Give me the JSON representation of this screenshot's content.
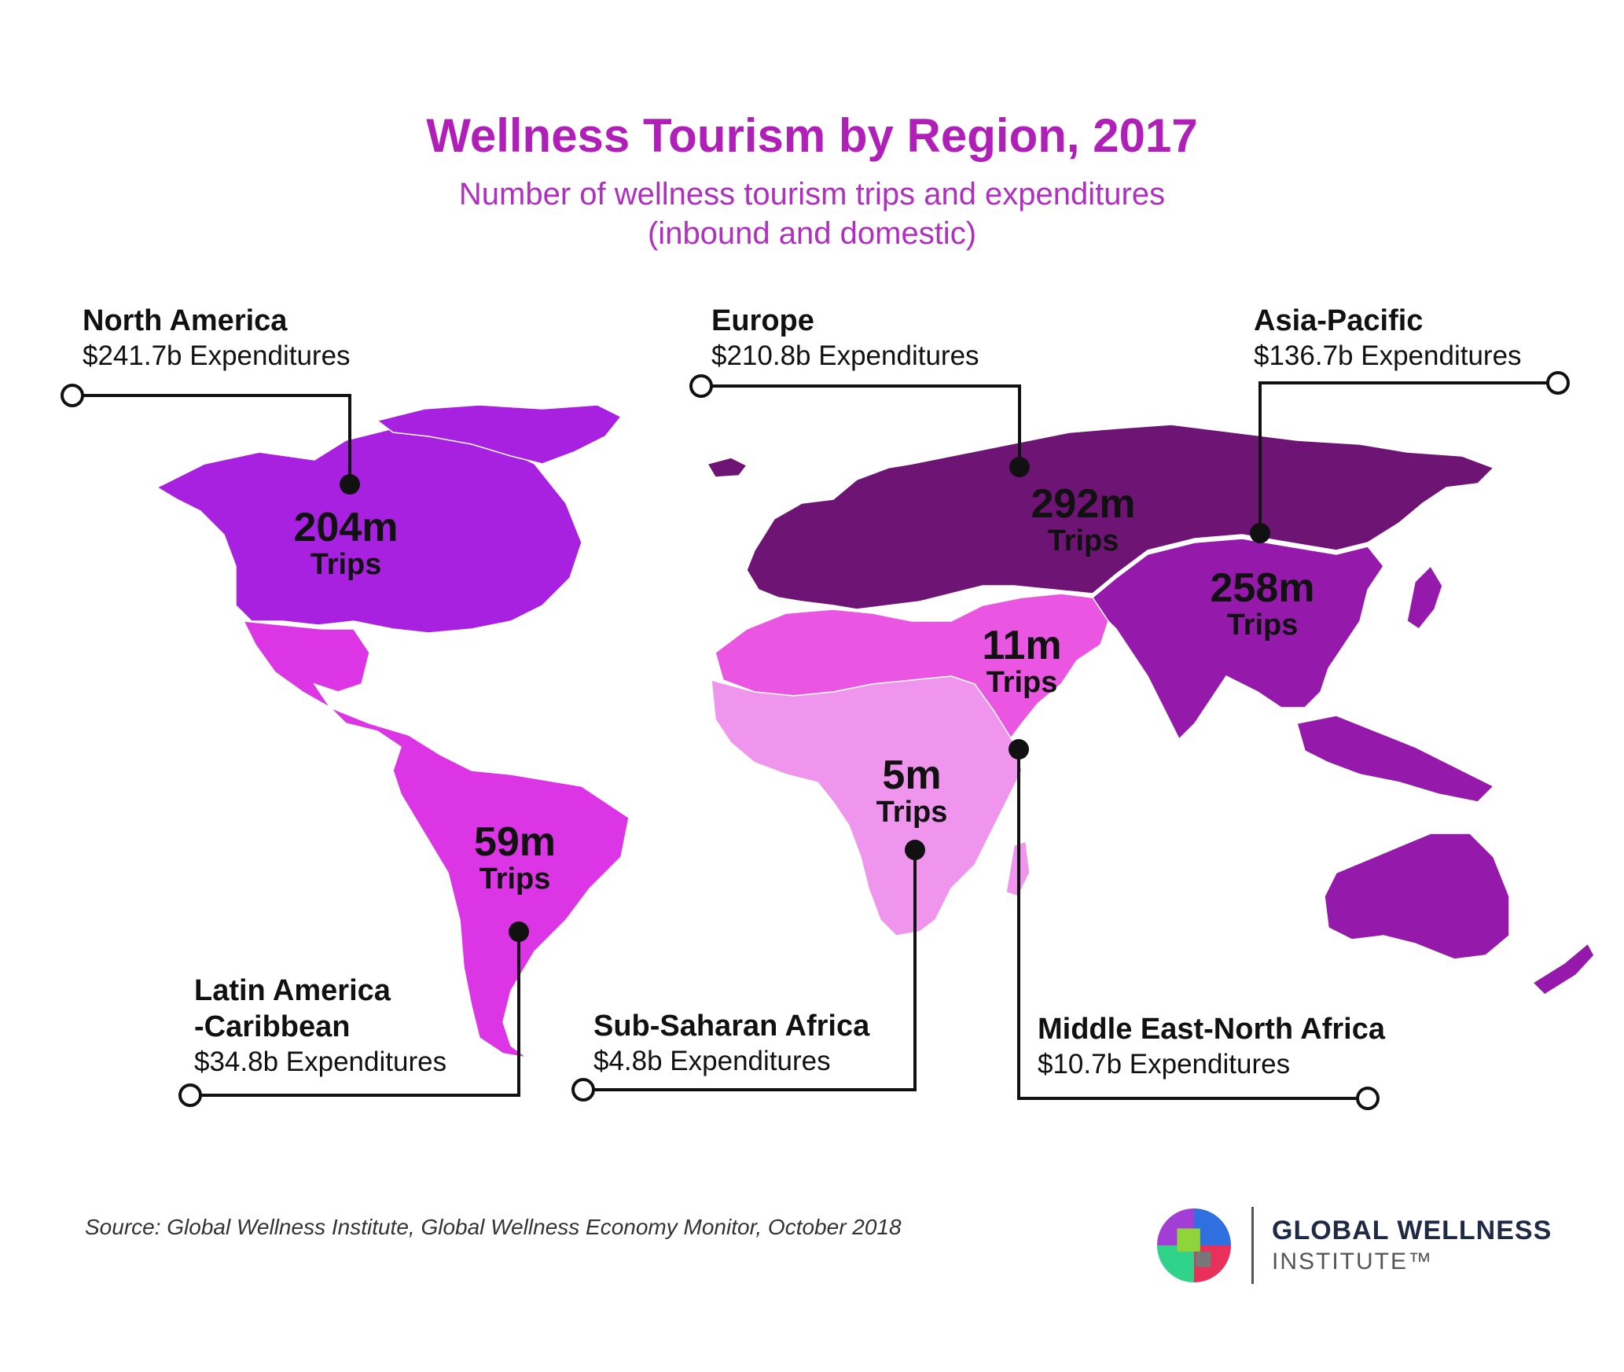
{
  "header": {
    "title": "Wellness Tourism by Region, 2017",
    "subtitle_line1": "Number of wellness tourism trips and expenditures",
    "subtitle_line2": "(inbound and domestic)"
  },
  "colors": {
    "title": "#b01fb8",
    "subtitle": "#b02fc0",
    "north_america": "#a921e0",
    "latin_america": "#dc35e5",
    "europe": "#6e1475",
    "asia_pacific": "#951aab",
    "mena": "#ea55e2",
    "sub_saharan_africa": "#ef95ee",
    "leader_line": "#111111"
  },
  "regions": {
    "north_america": {
      "name": "North America",
      "expenditures": "$241.7b Expenditures",
      "trips_value": "204m",
      "trips_label": "Trips"
    },
    "europe": {
      "name": "Europe",
      "expenditures": "$210.8b Expenditures",
      "trips_value": "292m",
      "trips_label": "Trips"
    },
    "asia_pacific": {
      "name": "Asia-Pacific",
      "expenditures": "$136.7b Expenditures",
      "trips_value": "258m",
      "trips_label": "Trips"
    },
    "latin_america": {
      "name_line1": "Latin America",
      "name_line2": "-Caribbean",
      "expenditures": "$34.8b Expenditures",
      "trips_value": "59m",
      "trips_label": "Trips"
    },
    "sub_saharan_africa": {
      "name": "Sub-Saharan Africa",
      "expenditures": "$4.8b Expenditures",
      "trips_value": "5m",
      "trips_label": "Trips"
    },
    "mena": {
      "name": "Middle East-North Africa",
      "expenditures": "$10.7b Expenditures",
      "trips_value": "11m",
      "trips_label": "Trips"
    }
  },
  "source": "Source: Global Wellness Institute, Global Wellness Economy Monitor, October 2018",
  "logo": {
    "line1": "GLOBAL WELLNESS",
    "line2": "INSTITUTE™"
  }
}
